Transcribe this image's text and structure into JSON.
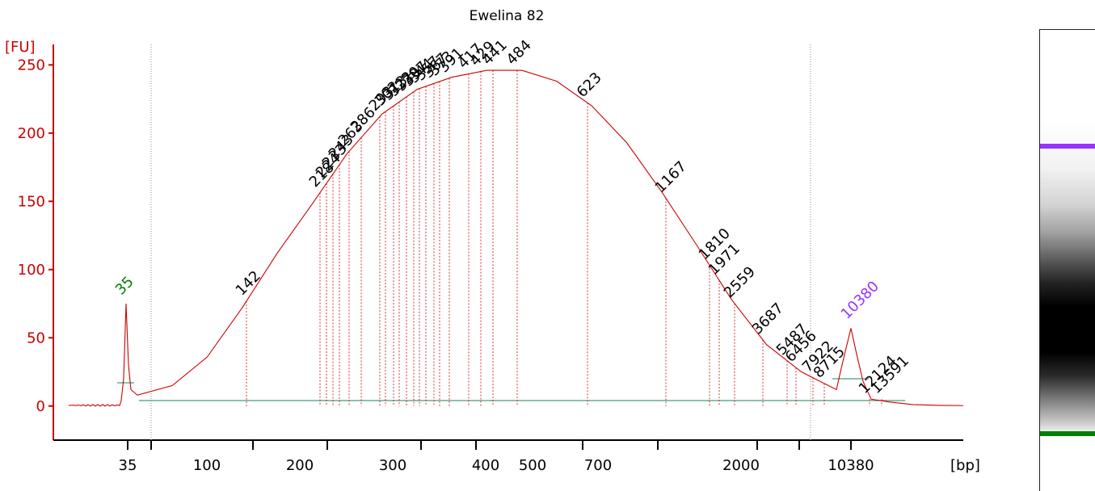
{
  "title": "Ewelina 82",
  "colors": {
    "axis": "#cc0000",
    "trace": "#cc0000",
    "baseline": "#4a9a7a",
    "lower_marker": "#008000",
    "upper_marker": "#9933ff"
  },
  "chart_data": {
    "type": "line",
    "title": "Ewelina 82",
    "ylabel": "[FU]",
    "xlabel": "[bp]",
    "ylim": [
      -25,
      265
    ],
    "yticks": [
      "0",
      "50",
      "100",
      "150",
      "200",
      "250"
    ],
    "xticks": [
      "35",
      "100",
      "200",
      "300",
      "400",
      "500",
      "700",
      "2000",
      "10380"
    ],
    "grid": false,
    "markers": [
      {
        "label": "35",
        "kind": "lower",
        "height": 75
      },
      {
        "label": "10380",
        "kind": "upper",
        "height": 57
      }
    ],
    "peak_labels": [
      "142",
      "218",
      "224",
      "233",
      "243",
      "263",
      "286",
      "293",
      "302",
      "313",
      "322",
      "330",
      "337",
      "344",
      "357",
      "367",
      "373",
      "391",
      "417",
      "429",
      "441",
      "484",
      "623",
      "1167",
      "1810",
      "1971",
      "2559",
      "3687",
      "5487",
      "6456",
      "7922",
      "8715",
      "12124",
      "13591"
    ],
    "smear_curve": [
      {
        "t": 0.0,
        "fu": 8
      },
      {
        "t": 0.05,
        "fu": 15
      },
      {
        "t": 0.1,
        "fu": 36
      },
      {
        "t": 0.15,
        "fu": 72
      },
      {
        "t": 0.2,
        "fu": 112
      },
      {
        "t": 0.25,
        "fu": 148
      },
      {
        "t": 0.3,
        "fu": 185
      },
      {
        "t": 0.35,
        "fu": 214
      },
      {
        "t": 0.4,
        "fu": 232
      },
      {
        "t": 0.45,
        "fu": 241
      },
      {
        "t": 0.5,
        "fu": 246
      },
      {
        "t": 0.55,
        "fu": 246
      },
      {
        "t": 0.6,
        "fu": 238
      },
      {
        "t": 0.65,
        "fu": 220
      },
      {
        "t": 0.7,
        "fu": 193
      },
      {
        "t": 0.75,
        "fu": 157
      },
      {
        "t": 0.8,
        "fu": 118
      },
      {
        "t": 0.85,
        "fu": 78
      },
      {
        "t": 0.9,
        "fu": 45
      },
      {
        "t": 0.95,
        "fu": 25
      },
      {
        "t": 1.0,
        "fu": 12
      }
    ]
  }
}
